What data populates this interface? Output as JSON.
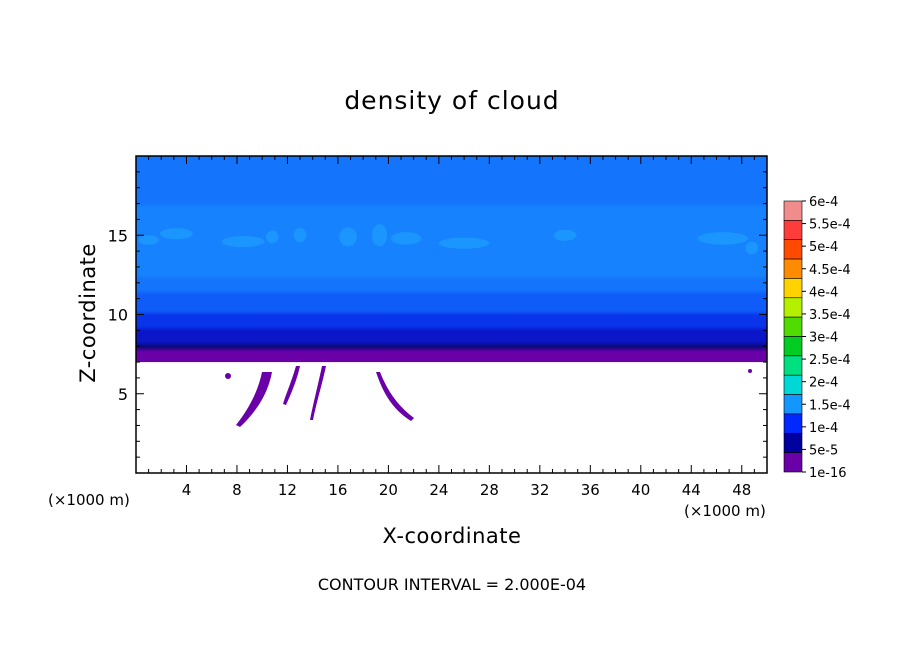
{
  "chart_data": {
    "type": "heatmap",
    "title": "density of cloud",
    "xlabel": "X-coordinate",
    "ylabel": "Z-coordinate",
    "x_unit_note_left": "(×1000 m)",
    "x_unit_note_right": "(×1000 m)",
    "xlim": [
      0,
      50
    ],
    "ylim": [
      0,
      20
    ],
    "x_ticks": [
      "4",
      "8",
      "12",
      "16",
      "20",
      "24",
      "28",
      "32",
      "36",
      "40",
      "44",
      "48"
    ],
    "y_ticks": [
      "5",
      "10",
      "15"
    ],
    "footer": "CONTOUR INTERVAL = 2.000E-04",
    "colorbar": {
      "labels": [
        "6e-4",
        "5.5e-4",
        "5e-4",
        "4.5e-4",
        "4e-4",
        "3.5e-4",
        "3e-4",
        "2.5e-4",
        "2e-4",
        "1.5e-4",
        "1e-4",
        "5e-5",
        "1e-16"
      ],
      "colors": [
        "#f08c8c",
        "#ff3c3c",
        "#ff4a00",
        "#ff8c00",
        "#ffd200",
        "#b4f000",
        "#50dc00",
        "#00cc22",
        "#00e080",
        "#00d8d8",
        "#1496ff",
        "#0028ff",
        "#0000a0",
        "#6a00a8"
      ]
    },
    "cloud_layer": {
      "base_z": 7.0,
      "top_z": 20,
      "profile_z": [
        7.0,
        7.5,
        8.0,
        8.5,
        9.0,
        9.5,
        10.0,
        10.5,
        11.0,
        11.5,
        12.0,
        13.0,
        14.0,
        15.0,
        16.0,
        17.0,
        18.0,
        19.0,
        20.0
      ],
      "profile_value": [
        1e-16,
        1e-05,
        4e-05,
        6e-05,
        8e-05,
        9e-05,
        0.0001,
        0.000105,
        0.00011,
        0.00012,
        0.00013,
        0.00014,
        0.000145,
        0.000145,
        0.00014,
        0.000135,
        0.00013,
        0.000125,
        0.00012
      ]
    }
  }
}
